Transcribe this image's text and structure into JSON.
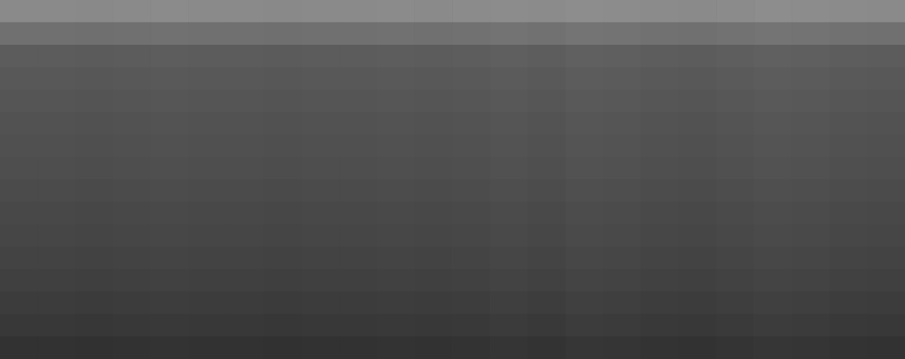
{
  "chart_data": {
    "type": "heatmap",
    "values": [
      [
        138,
        138,
        137,
        138,
        139,
        138,
        138,
        137,
        138,
        138,
        139,
        138,
        139,
        140,
        139,
        141,
        140,
        139,
        138,
        139,
        141,
        140,
        139,
        138
      ],
      [
        112,
        112,
        111,
        112,
        113,
        112,
        112,
        111,
        112,
        112,
        113,
        112,
        113,
        115,
        113,
        116,
        115,
        113,
        112,
        114,
        116,
        115,
        113,
        112
      ],
      [
        92,
        92,
        91,
        92,
        93,
        92,
        92,
        91,
        92,
        92,
        93,
        92,
        93,
        95,
        93,
        96,
        95,
        93,
        92,
        94,
        96,
        95,
        93,
        92
      ],
      [
        88,
        88,
        87,
        88,
        89,
        88,
        88,
        87,
        88,
        88,
        89,
        88,
        89,
        91,
        89,
        92,
        91,
        89,
        88,
        90,
        92,
        91,
        89,
        88
      ],
      [
        85,
        85,
        84,
        85,
        86,
        85,
        85,
        84,
        85,
        85,
        86,
        85,
        86,
        88,
        86,
        89,
        88,
        86,
        85,
        87,
        89,
        88,
        86,
        85
      ],
      [
        82,
        82,
        81,
        82,
        83,
        82,
        82,
        81,
        82,
        82,
        83,
        82,
        83,
        85,
        83,
        86,
        85,
        83,
        82,
        84,
        86,
        85,
        83,
        82
      ],
      [
        80,
        80,
        79,
        80,
        81,
        80,
        80,
        79,
        80,
        80,
        81,
        80,
        81,
        83,
        81,
        84,
        83,
        81,
        80,
        82,
        84,
        83,
        81,
        80
      ],
      [
        78,
        78,
        77,
        78,
        79,
        78,
        78,
        77,
        78,
        78,
        79,
        78,
        79,
        81,
        79,
        82,
        81,
        79,
        78,
        80,
        82,
        81,
        79,
        78
      ],
      [
        75,
        75,
        74,
        75,
        76,
        75,
        75,
        74,
        75,
        75,
        76,
        75,
        76,
        78,
        76,
        79,
        78,
        76,
        75,
        77,
        79,
        78,
        76,
        75
      ],
      [
        72,
        72,
        71,
        72,
        73,
        72,
        72,
        71,
        72,
        72,
        73,
        72,
        73,
        75,
        73,
        76,
        75,
        73,
        72,
        74,
        76,
        75,
        73,
        72
      ],
      [
        70,
        70,
        69,
        70,
        71,
        70,
        70,
        69,
        70,
        70,
        71,
        70,
        71,
        73,
        71,
        74,
        73,
        71,
        70,
        72,
        74,
        73,
        71,
        70
      ],
      [
        67,
        67,
        66,
        67,
        68,
        67,
        67,
        66,
        67,
        67,
        68,
        67,
        68,
        70,
        68,
        71,
        70,
        68,
        67,
        69,
        71,
        70,
        68,
        67
      ],
      [
        64,
        64,
        63,
        64,
        65,
        64,
        64,
        63,
        64,
        64,
        65,
        64,
        65,
        67,
        65,
        68,
        67,
        65,
        64,
        66,
        68,
        67,
        65,
        64
      ],
      [
        60,
        60,
        59,
        60,
        61,
        60,
        60,
        59,
        60,
        60,
        61,
        60,
        61,
        63,
        61,
        64,
        63,
        61,
        60,
        62,
        64,
        63,
        61,
        60
      ],
      [
        56,
        56,
        55,
        56,
        57,
        56,
        56,
        55,
        56,
        56,
        57,
        56,
        57,
        59,
        57,
        60,
        59,
        57,
        56,
        58,
        60,
        59,
        57,
        56
      ],
      [
        50,
        50,
        49,
        50,
        51,
        50,
        50,
        49,
        50,
        50,
        51,
        50,
        51,
        53,
        51,
        54,
        53,
        51,
        50,
        52,
        54,
        53,
        51,
        50
      ]
    ],
    "zlim": [
      0,
      255
    ],
    "tick_labels": false,
    "grid": false
  }
}
